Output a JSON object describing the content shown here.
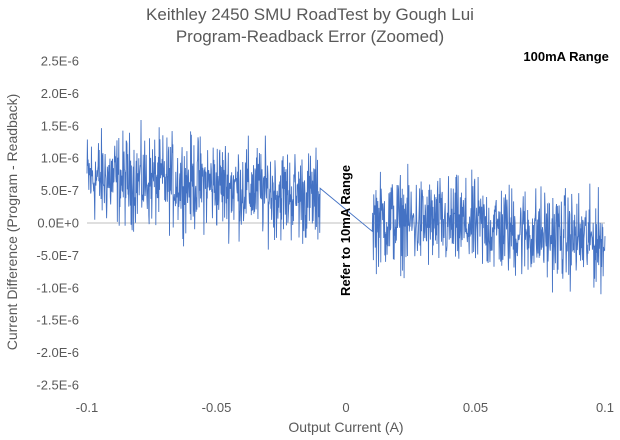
{
  "chart_data": {
    "type": "line",
    "title_line1": "Keithley 2450 SMU RoadTest by Gough Lui",
    "title_line2": "Program-Readback Error (Zoomed)",
    "xlabel": "Output Current (A)",
    "ylabel": "Current Difference (Program - Readback)",
    "xlim": [
      -0.1,
      0.1
    ],
    "ylim": [
      -2.5e-06,
      2.5e-06
    ],
    "x_ticks": [
      {
        "value": -0.1,
        "label": "-0.1"
      },
      {
        "value": -0.05,
        "label": "-0.05"
      },
      {
        "value": 0,
        "label": "0"
      },
      {
        "value": 0.05,
        "label": "0.05"
      },
      {
        "value": 0.1,
        "label": "0.1"
      }
    ],
    "y_ticks": [
      {
        "value": 2.5e-06,
        "label": "2.5E-6"
      },
      {
        "value": 2e-06,
        "label": "2.0E-6"
      },
      {
        "value": 1.5e-06,
        "label": "1.5E-6"
      },
      {
        "value": 1e-06,
        "label": "1.0E-6"
      },
      {
        "value": 5e-07,
        "label": "5.0E-7"
      },
      {
        "value": 0,
        "label": "0.0E+0"
      },
      {
        "value": -5e-07,
        "label": "-5.0E-7"
      },
      {
        "value": -1e-06,
        "label": "-1.0E-6"
      },
      {
        "value": -1.5e-06,
        "label": "-1.5E-6"
      },
      {
        "value": -2e-06,
        "label": "-2.0E-6"
      },
      {
        "value": -2.5e-06,
        "label": "-2.5E-6"
      }
    ],
    "grid": false,
    "series_color": "#4472c4",
    "series": [
      {
        "trend": [
          [
            -0.1,
            7e-07
          ],
          [
            -0.05,
            6e-07
          ],
          [
            -0.01,
            3.8e-07
          ],
          [
            0.01,
            5e-08
          ],
          [
            0.05,
            -5e-08
          ],
          [
            0.1,
            -3e-07
          ]
        ],
        "noise_amplitude": 6.5e-07,
        "gap": [
          -0.01,
          0.01
        ]
      }
    ],
    "annotations": [
      {
        "text": "100mA Range",
        "x": 0.085,
        "y": 2.5e-06,
        "rotation": 0
      },
      {
        "text": "Refer to 10mA Range",
        "x": 0,
        "y": -3e-07,
        "rotation": -90
      }
    ]
  }
}
